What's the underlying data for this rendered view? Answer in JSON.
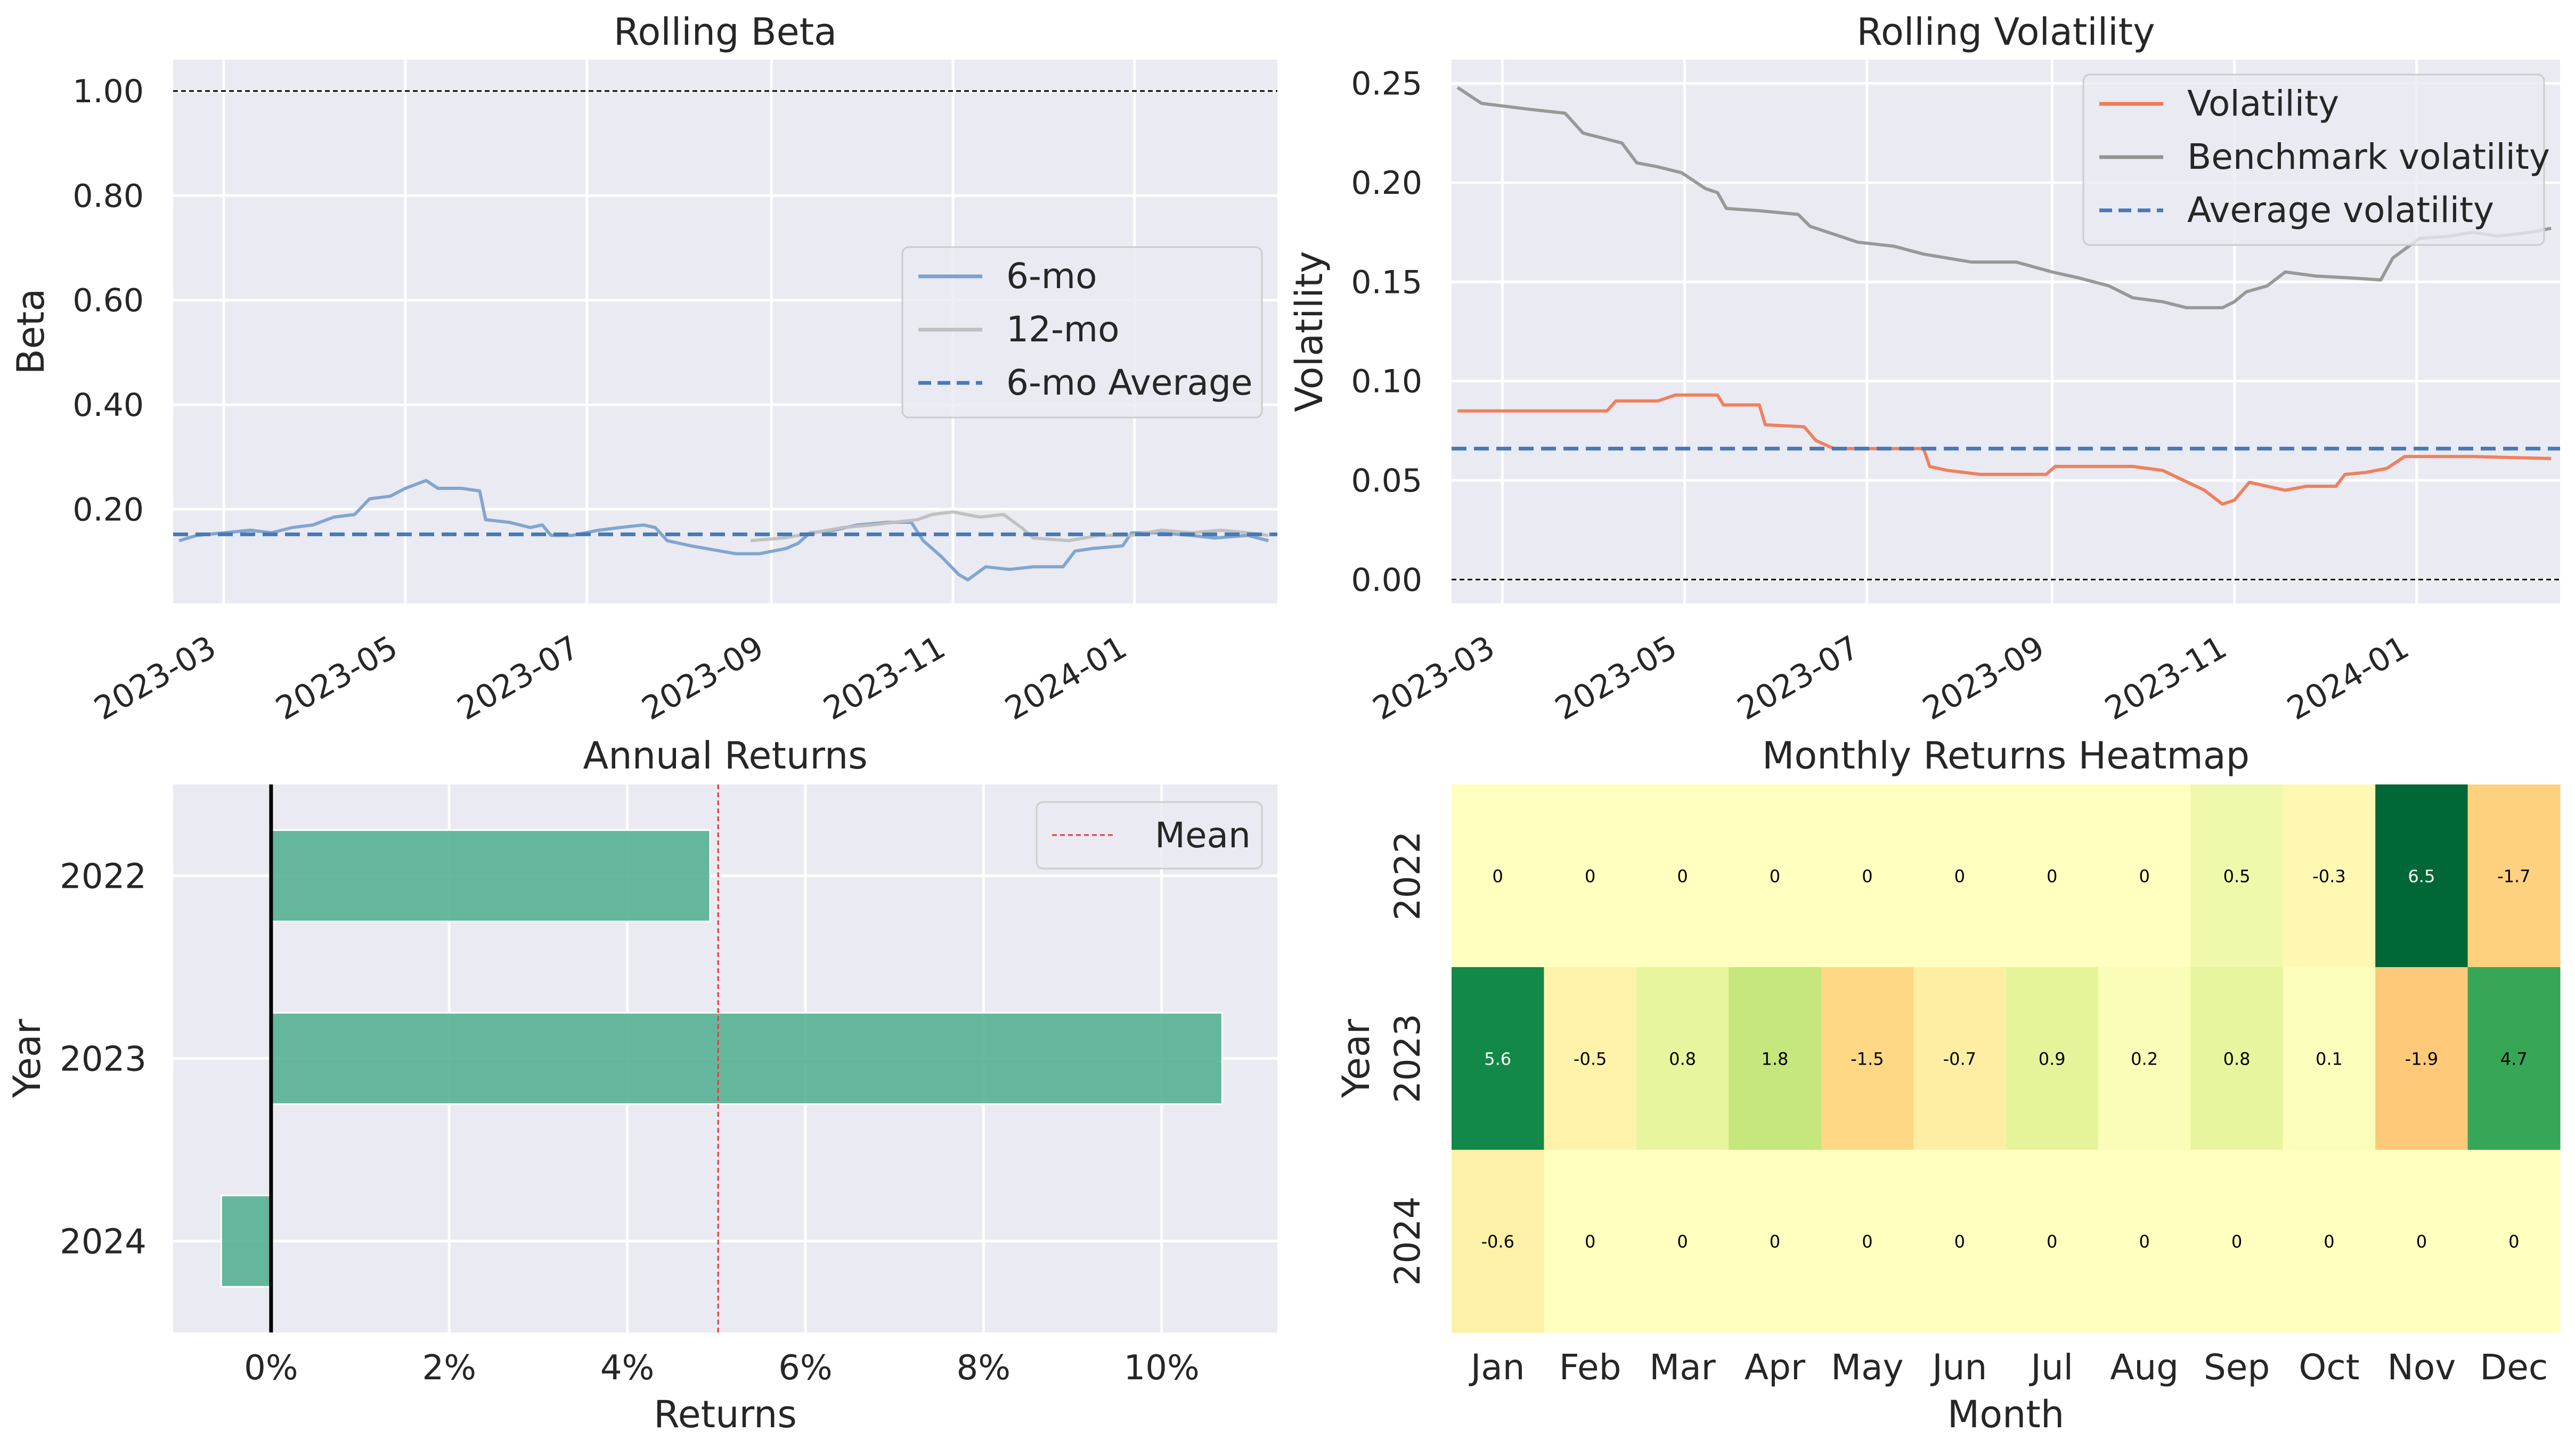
{
  "chart_data": [
    {
      "id": "rolling_beta",
      "type": "line",
      "title": "Rolling Beta",
      "xlabel": "",
      "ylabel": "Beta",
      "x_range": [
        "2023-02-12",
        "2024-02-18"
      ],
      "ylim": [
        0.02,
        1.06
      ],
      "x_ticks": [
        "2023-03",
        "2023-05",
        "2023-07",
        "2023-09",
        "2023-11",
        "2024-01"
      ],
      "y_ticks": [
        "0.20",
        "0.40",
        "0.60",
        "0.80",
        "1.00"
      ],
      "grid": true,
      "legend_position": "center-right",
      "reference_lines": [
        {
          "y": 1.0,
          "style": "dotted",
          "color": "#000000"
        }
      ],
      "series": [
        {
          "name": "6-mo",
          "color": "#7ba2cc",
          "points": [
            [
              "2023-02-14",
              0.14
            ],
            [
              "2023-02-20",
              0.15
            ],
            [
              "2023-03-01",
              0.155
            ],
            [
              "2023-03-10",
              0.16
            ],
            [
              "2023-03-17",
              0.155
            ],
            [
              "2023-03-24",
              0.165
            ],
            [
              "2023-03-31",
              0.17
            ],
            [
              "2023-04-07",
              0.185
            ],
            [
              "2023-04-14",
              0.19
            ],
            [
              "2023-04-19",
              0.22
            ],
            [
              "2023-04-26",
              0.225
            ],
            [
              "2023-05-01",
              0.24
            ],
            [
              "2023-05-08",
              0.255
            ],
            [
              "2023-05-12",
              0.24
            ],
            [
              "2023-05-20",
              0.24
            ],
            [
              "2023-05-26",
              0.235
            ],
            [
              "2023-05-28",
              0.18
            ],
            [
              "2023-06-05",
              0.175
            ],
            [
              "2023-06-12",
              0.165
            ],
            [
              "2023-06-16",
              0.17
            ],
            [
              "2023-06-19",
              0.15
            ],
            [
              "2023-06-26",
              0.15
            ],
            [
              "2023-07-05",
              0.16
            ],
            [
              "2023-07-12",
              0.165
            ],
            [
              "2023-07-20",
              0.17
            ],
            [
              "2023-07-24",
              0.165
            ],
            [
              "2023-07-28",
              0.14
            ],
            [
              "2023-08-05",
              0.13
            ],
            [
              "2023-08-15",
              0.12
            ],
            [
              "2023-08-20",
              0.115
            ],
            [
              "2023-08-28",
              0.115
            ],
            [
              "2023-09-06",
              0.125
            ],
            [
              "2023-09-10",
              0.135
            ],
            [
              "2023-09-14",
              0.155
            ],
            [
              "2023-09-22",
              0.16
            ],
            [
              "2023-09-30",
              0.17
            ],
            [
              "2023-10-10",
              0.175
            ],
            [
              "2023-10-18",
              0.175
            ],
            [
              "2023-10-22",
              0.14
            ],
            [
              "2023-10-28",
              0.11
            ],
            [
              "2023-11-03",
              0.075
            ],
            [
              "2023-11-06",
              0.065
            ],
            [
              "2023-11-12",
              0.09
            ],
            [
              "2023-11-20",
              0.085
            ],
            [
              "2023-11-28",
              0.09
            ],
            [
              "2023-12-08",
              0.09
            ],
            [
              "2023-12-12",
              0.12
            ],
            [
              "2023-12-18",
              0.125
            ],
            [
              "2023-12-28",
              0.13
            ],
            [
              "2023-12-31",
              0.155
            ],
            [
              "2024-01-10",
              0.155
            ],
            [
              "2024-01-20",
              0.15
            ],
            [
              "2024-01-28",
              0.145
            ],
            [
              "2024-02-08",
              0.15
            ],
            [
              "2024-02-15",
              0.14
            ]
          ]
        },
        {
          "name": "12-mo",
          "color": "#bfbfbf",
          "points": [
            [
              "2023-08-25",
              0.14
            ],
            [
              "2023-09-05",
              0.145
            ],
            [
              "2023-09-15",
              0.155
            ],
            [
              "2023-09-25",
              0.165
            ],
            [
              "2023-10-05",
              0.17
            ],
            [
              "2023-10-12",
              0.175
            ],
            [
              "2023-10-20",
              0.18
            ],
            [
              "2023-10-25",
              0.19
            ],
            [
              "2023-11-01",
              0.195
            ],
            [
              "2023-11-10",
              0.185
            ],
            [
              "2023-11-18",
              0.19
            ],
            [
              "2023-11-24",
              0.165
            ],
            [
              "2023-11-28",
              0.145
            ],
            [
              "2023-12-10",
              0.14
            ],
            [
              "2023-12-20",
              0.15
            ],
            [
              "2023-12-31",
              0.15
            ],
            [
              "2024-01-10",
              0.16
            ],
            [
              "2024-01-20",
              0.155
            ],
            [
              "2024-01-30",
              0.16
            ],
            [
              "2024-02-08",
              0.155
            ],
            [
              "2024-02-15",
              0.15
            ]
          ]
        },
        {
          "name": "6-mo Average",
          "color": "#4879b5",
          "style": "dashed",
          "value": 0.152
        }
      ]
    },
    {
      "id": "rolling_volatility",
      "type": "line",
      "title": "Rolling Volatility",
      "xlabel": "",
      "ylabel": "Volatility",
      "x_range": [
        "2023-02-12",
        "2024-02-18"
      ],
      "ylim": [
        -0.012,
        0.262
      ],
      "x_ticks": [
        "2023-03",
        "2023-05",
        "2023-07",
        "2023-09",
        "2023-11",
        "2024-01"
      ],
      "y_ticks": [
        "0.00",
        "0.05",
        "0.10",
        "0.15",
        "0.20",
        "0.25"
      ],
      "grid": true,
      "legend_position": "top-right",
      "reference_lines": [
        {
          "y": 0.0,
          "style": "dotted",
          "color": "#000000"
        }
      ],
      "series": [
        {
          "name": "Volatility",
          "color": "#f07a55",
          "points": [
            [
              "2023-02-14",
              0.085
            ],
            [
              "2023-04-05",
              0.085
            ],
            [
              "2023-04-08",
              0.09
            ],
            [
              "2023-04-22",
              0.09
            ],
            [
              "2023-04-28",
              0.093
            ],
            [
              "2023-05-12",
              0.093
            ],
            [
              "2023-05-14",
              0.088
            ],
            [
              "2023-05-26",
              0.088
            ],
            [
              "2023-05-28",
              0.078
            ],
            [
              "2023-06-10",
              0.077
            ],
            [
              "2023-06-14",
              0.07
            ],
            [
              "2023-06-20",
              0.066
            ],
            [
              "2023-07-20",
              0.066
            ],
            [
              "2023-07-22",
              0.057
            ],
            [
              "2023-07-28",
              0.055
            ],
            [
              "2023-08-08",
              0.053
            ],
            [
              "2023-08-30",
              0.053
            ],
            [
              "2023-09-02",
              0.057
            ],
            [
              "2023-09-28",
              0.057
            ],
            [
              "2023-10-08",
              0.055
            ],
            [
              "2023-10-15",
              0.05
            ],
            [
              "2023-10-22",
              0.045
            ],
            [
              "2023-10-28",
              0.038
            ],
            [
              "2023-11-01",
              0.04
            ],
            [
              "2023-11-06",
              0.049
            ],
            [
              "2023-11-18",
              0.045
            ],
            [
              "2023-11-25",
              0.047
            ],
            [
              "2023-12-05",
              0.047
            ],
            [
              "2023-12-08",
              0.053
            ],
            [
              "2023-12-15",
              0.054
            ],
            [
              "2023-12-22",
              0.056
            ],
            [
              "2023-12-28",
              0.062
            ],
            [
              "2024-01-20",
              0.062
            ],
            [
              "2024-02-15",
              0.061
            ]
          ]
        },
        {
          "name": "Benchmark volatility",
          "color": "#949494",
          "points": [
            [
              "2023-02-14",
              0.248
            ],
            [
              "2023-02-22",
              0.24
            ],
            [
              "2023-03-10",
              0.237
            ],
            [
              "2023-03-22",
              0.235
            ],
            [
              "2023-03-28",
              0.225
            ],
            [
              "2023-04-10",
              0.22
            ],
            [
              "2023-04-15",
              0.21
            ],
            [
              "2023-04-22",
              0.208
            ],
            [
              "2023-04-30",
              0.205
            ],
            [
              "2023-05-08",
              0.197
            ],
            [
              "2023-05-12",
              0.195
            ],
            [
              "2023-05-15",
              0.187
            ],
            [
              "2023-05-25",
              0.186
            ],
            [
              "2023-06-01",
              0.185
            ],
            [
              "2023-06-08",
              0.184
            ],
            [
              "2023-06-12",
              0.178
            ],
            [
              "2023-06-22",
              0.173
            ],
            [
              "2023-06-28",
              0.17
            ],
            [
              "2023-07-10",
              0.168
            ],
            [
              "2023-07-20",
              0.164
            ],
            [
              "2023-08-05",
              0.16
            ],
            [
              "2023-08-20",
              0.16
            ],
            [
              "2023-09-01",
              0.155
            ],
            [
              "2023-09-10",
              0.152
            ],
            [
              "2023-09-20",
              0.148
            ],
            [
              "2023-09-28",
              0.142
            ],
            [
              "2023-10-08",
              0.14
            ],
            [
              "2023-10-16",
              0.137
            ],
            [
              "2023-10-28",
              0.137
            ],
            [
              "2023-11-01",
              0.14
            ],
            [
              "2023-11-05",
              0.145
            ],
            [
              "2023-11-12",
              0.148
            ],
            [
              "2023-11-18",
              0.155
            ],
            [
              "2023-11-28",
              0.153
            ],
            [
              "2023-12-10",
              0.152
            ],
            [
              "2023-12-20",
              0.151
            ],
            [
              "2023-12-24",
              0.162
            ],
            [
              "2024-01-02",
              0.172
            ],
            [
              "2024-01-12",
              0.173
            ],
            [
              "2024-01-20",
              0.175
            ],
            [
              "2024-01-28",
              0.173
            ],
            [
              "2024-02-08",
              0.175
            ],
            [
              "2024-02-15",
              0.177
            ]
          ]
        },
        {
          "name": "Average volatility",
          "color": "#4879b5",
          "style": "dashed",
          "value": 0.066
        }
      ]
    },
    {
      "id": "annual_returns",
      "type": "bar",
      "orientation": "horizontal",
      "title": "Annual Returns",
      "xlabel": "Returns",
      "ylabel": "Year",
      "categories": [
        "2022",
        "2023",
        "2024"
      ],
      "values": [
        4.93,
        10.68,
        -0.56
      ],
      "unit": "%",
      "xlim": [
        -1.1,
        11.3
      ],
      "x_ticks": [
        "0%",
        "2%",
        "4%",
        "6%",
        "8%",
        "10%"
      ],
      "grid": true,
      "bar_color": "#55b194",
      "legend_position": "top-right",
      "reference_lines": [
        {
          "name": "Mean",
          "x": 5.02,
          "style": "dashed",
          "color": "#e8383d"
        },
        {
          "x": 0,
          "style": "solid",
          "color": "#000000"
        }
      ]
    },
    {
      "id": "monthly_heatmap",
      "type": "heatmap",
      "title": "Monthly Returns Heatmap",
      "xlabel": "Month",
      "ylabel": "Year",
      "columns": [
        "Jan",
        "Feb",
        "Mar",
        "Apr",
        "May",
        "Jun",
        "Jul",
        "Aug",
        "Sep",
        "Oct",
        "Nov",
        "Dec"
      ],
      "rows": [
        "2022",
        "2023",
        "2024"
      ],
      "values": [
        [
          0,
          0,
          0,
          0,
          0,
          0,
          0,
          0,
          0.5,
          -0.3,
          6.5,
          -1.7
        ],
        [
          5.6,
          -0.5,
          0.8,
          1.8,
          -1.5,
          -0.7,
          0.9,
          0.2,
          0.8,
          0.1,
          -1.9,
          4.7
        ],
        [
          -0.6,
          0,
          0,
          0,
          0,
          0,
          0,
          0,
          0,
          0,
          0,
          0
        ]
      ],
      "colormap": "RdYlGn",
      "value_range": [
        -6.5,
        6.5
      ]
    }
  ]
}
